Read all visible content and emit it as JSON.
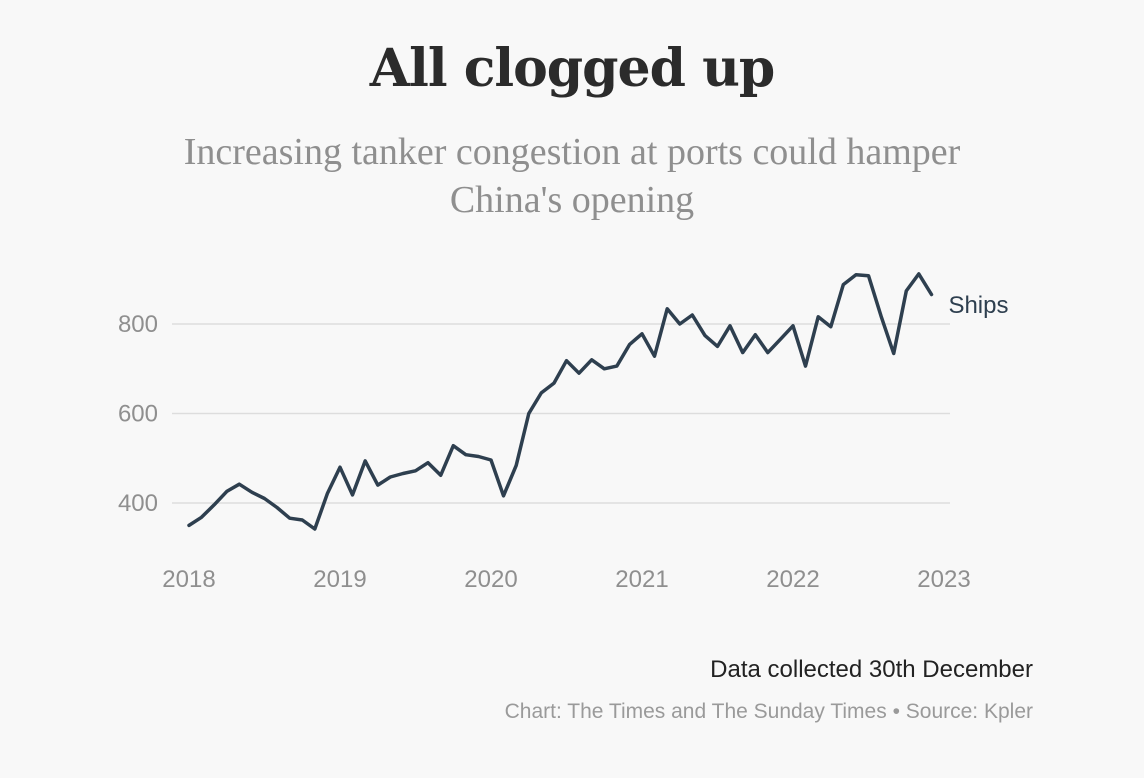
{
  "header": {
    "title": "All clogged up",
    "subtitle": "Increasing tanker congestion at ports could hamper China's opening"
  },
  "footer": {
    "note": "Data collected 30th December",
    "credit_chart": "Chart: The Times and The Sunday Times",
    "credit_separator": "•",
    "credit_source": "Source: Kpler"
  },
  "colors": {
    "line": "#2e3f4f",
    "grid": "#dddddd",
    "tick_text": "#8f8f8f"
  },
  "chart_data": {
    "type": "line",
    "title": "All clogged up",
    "subtitle": "Increasing tanker congestion at ports could hamper China's opening",
    "xlabel": "",
    "ylabel": "",
    "series": [
      {
        "name": "Ships",
        "x": [
          2018.0,
          2018.083,
          2018.167,
          2018.25,
          2018.333,
          2018.417,
          2018.5,
          2018.583,
          2018.667,
          2018.75,
          2018.833,
          2018.917,
          2019.0,
          2019.083,
          2019.167,
          2019.25,
          2019.333,
          2019.417,
          2019.5,
          2019.583,
          2019.667,
          2019.75,
          2019.833,
          2019.917,
          2020.0,
          2020.083,
          2020.167,
          2020.25,
          2020.333,
          2020.417,
          2020.5,
          2020.583,
          2020.667,
          2020.75,
          2020.833,
          2020.917,
          2021.0,
          2021.083,
          2021.167,
          2021.25,
          2021.333,
          2021.417,
          2021.5,
          2021.583,
          2021.667,
          2021.75,
          2021.833,
          2021.917,
          2022.0,
          2022.083,
          2022.167,
          2022.25,
          2022.333,
          2022.417,
          2022.5,
          2022.583,
          2022.667,
          2022.75,
          2022.833,
          2022.917
        ],
        "values": [
          350,
          368,
          396,
          426,
          442,
          424,
          410,
          390,
          366,
          362,
          342,
          422,
          480,
          418,
          494,
          440,
          458,
          466,
          472,
          490,
          462,
          528,
          508,
          504,
          496,
          416,
          484,
          600,
          646,
          668,
          718,
          690,
          720,
          700,
          706,
          754,
          778,
          728,
          834,
          800,
          820,
          774,
          750,
          796,
          736,
          776,
          736,
          766,
          796,
          706,
          816,
          794,
          888,
          910,
          908,
          818,
          734,
          874,
          912,
          866
        ]
      }
    ],
    "x_ticks": [
      "2018",
      "2019",
      "2020",
      "2021",
      "2022",
      "2023"
    ],
    "x_tick_values": [
      2018,
      2019,
      2020,
      2021,
      2022,
      2023
    ],
    "y_ticks": [
      "400",
      "600",
      "800"
    ],
    "y_tick_values": [
      400,
      600,
      800
    ],
    "xlim": [
      2018,
      2023
    ],
    "ylim": [
      350,
      900
    ],
    "grid": true,
    "legend": "end-of-line label"
  }
}
